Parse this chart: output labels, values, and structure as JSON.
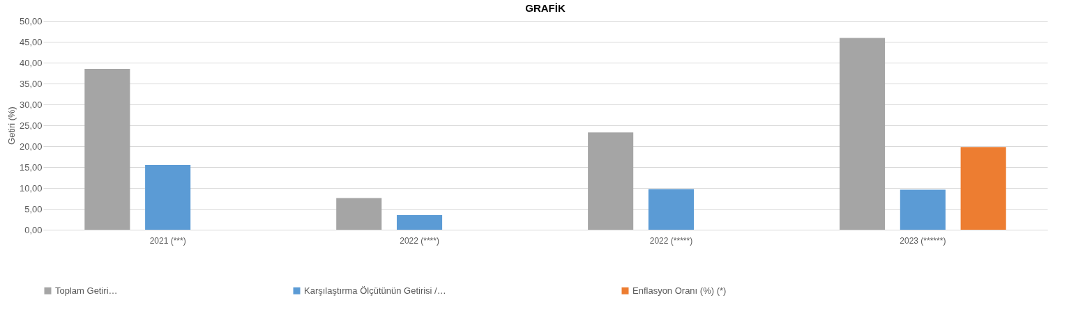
{
  "chart_data": {
    "type": "bar",
    "title": "GRAFİK",
    "ylabel": "Getiri (%)",
    "categories": [
      "2021 (***)",
      "2022 (****)",
      "2022 (*****)",
      "2023 (******)"
    ],
    "series": [
      {
        "name": "Toplam Getiri…",
        "color": "#a5a5a5",
        "values": [
          38.5,
          7.6,
          23.3,
          45.9
        ]
      },
      {
        "name": "Karşılaştırma Ölçütünün Getirisi /…",
        "color": "#5b9bd5",
        "values": [
          15.5,
          3.5,
          9.7,
          9.6
        ]
      },
      {
        "name": "Enflasyon Oranı (%) (*)",
        "color": "#ed7d31",
        "values": [
          null,
          null,
          null,
          19.8
        ]
      }
    ],
    "ylim": [
      0,
      50
    ],
    "yticks": [
      {
        "value": 0,
        "label": "0,00"
      },
      {
        "value": 5,
        "label": "5,00"
      },
      {
        "value": 10,
        "label": "10,00"
      },
      {
        "value": 15,
        "label": "15,00"
      },
      {
        "value": 20,
        "label": "20,00"
      },
      {
        "value": 25,
        "label": "25,00"
      },
      {
        "value": 30,
        "label": "30,00"
      },
      {
        "value": 35,
        "label": "35,00"
      },
      {
        "value": 40,
        "label": "40,00"
      },
      {
        "value": 45,
        "label": "45,00"
      },
      {
        "value": 50,
        "label": "50,00"
      }
    ],
    "grid": "y",
    "legend": "bottom"
  }
}
